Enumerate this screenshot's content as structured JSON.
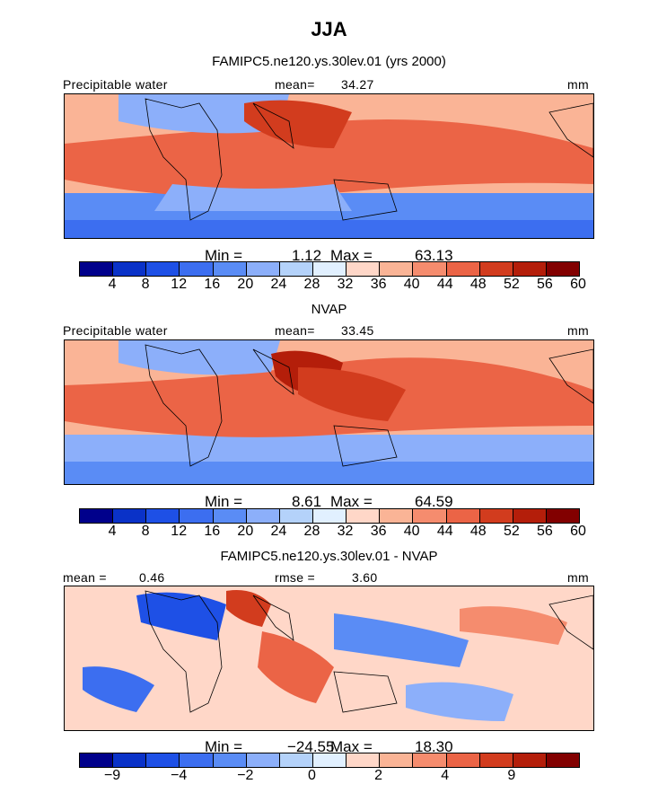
{
  "figure": {
    "title": "JJA"
  },
  "chart_data": [
    {
      "type": "heatmap",
      "title": "FAMIPC5.ne120.ys.30lev.01 (yrs 2000)",
      "variable": "Precipitable water",
      "units": "mm",
      "mean_label": "mean=",
      "mean": "34.27",
      "min_label": "Min =",
      "min": "1.12",
      "max_label": "Max =",
      "max": "63.13",
      "colorbar_ticks": [
        "4",
        "8",
        "12",
        "16",
        "20",
        "24",
        "28",
        "32",
        "36",
        "40",
        "44",
        "48",
        "52",
        "56",
        "60"
      ],
      "colorbar_colors": [
        "#00008b",
        "#0a32c8",
        "#1e50e6",
        "#3c6ef0",
        "#5a8cf5",
        "#8caffa",
        "#b4d2fa",
        "#e1f0ff",
        "#ffd7c8",
        "#fab496",
        "#f58c6e",
        "#eb6446",
        "#d23c1e",
        "#b41e0a",
        "#820000"
      ]
    },
    {
      "type": "heatmap",
      "title": "NVAP",
      "variable": "Precipitable water",
      "units": "mm",
      "mean_label": "mean=",
      "mean": "33.45",
      "min_label": "Min =",
      "min": "8.61",
      "max_label": "Max =",
      "max": "64.59",
      "colorbar_ticks": [
        "4",
        "8",
        "12",
        "16",
        "20",
        "24",
        "28",
        "32",
        "36",
        "40",
        "44",
        "48",
        "52",
        "56",
        "60"
      ],
      "colorbar_colors": [
        "#00008b",
        "#0a32c8",
        "#1e50e6",
        "#3c6ef0",
        "#5a8cf5",
        "#8caffa",
        "#b4d2fa",
        "#e1f0ff",
        "#ffd7c8",
        "#fab496",
        "#f58c6e",
        "#eb6446",
        "#d23c1e",
        "#b41e0a",
        "#820000"
      ]
    },
    {
      "type": "heatmap",
      "title": "FAMIPC5.ne120.ys.30lev.01 - NVAP",
      "units": "mm",
      "mean_label": "mean =",
      "mean": "0.46",
      "rmse_label": "rmse =",
      "rmse": "3.60",
      "min_label": "Min =",
      "min": "−24.55",
      "max_label": "Max =",
      "max": "18.30",
      "colorbar_ticks": [
        "−9",
        "−4",
        "−2",
        "0",
        "2",
        "4",
        "9"
      ],
      "colorbar_colors": [
        "#00008b",
        "#0a32c8",
        "#1e50e6",
        "#3c6ef0",
        "#5a8cf5",
        "#8caffa",
        "#b4d2fa",
        "#e1f0ff",
        "#ffd7c8",
        "#fab496",
        "#f58c6e",
        "#eb6446",
        "#d23c1e",
        "#b41e0a",
        "#820000"
      ]
    }
  ]
}
